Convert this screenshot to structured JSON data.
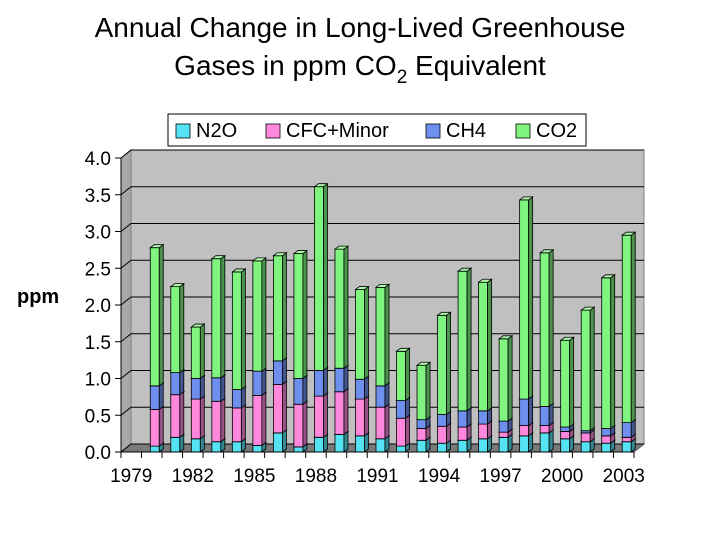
{
  "chart_data": {
    "type": "bar",
    "stacked": true,
    "style": "3d-stacked-column",
    "title_line1": "Annual Change in Long-Lived Greenhouse",
    "title_line2_prefix": "Gases in ppm CO",
    "title_line2_subscript": "2",
    "title_line2_suffix": " Equivalent",
    "ylabel": "ppm",
    "xlabel": "",
    "ylim": [
      0,
      4
    ],
    "yticks": [
      "0.0",
      "0.5",
      "1.0",
      "1.5",
      "2.0",
      "2.5",
      "3.0",
      "3.5",
      "4.0"
    ],
    "xtick_labels": [
      "1979",
      "1982",
      "1985",
      "1988",
      "1991",
      "1994",
      "1997",
      "2000",
      "2003"
    ],
    "grid": true,
    "legend_position": "top",
    "categories": [
      1979,
      1980,
      1981,
      1982,
      1983,
      1984,
      1985,
      1986,
      1987,
      1988,
      1989,
      1990,
      1991,
      1992,
      1993,
      1994,
      1995,
      1996,
      1997,
      1998,
      1999,
      2000,
      2001,
      2002,
      2003
    ],
    "series": [
      {
        "name": "N2O",
        "color": "#55e2f2",
        "values": [
          0,
          0.08,
          0.2,
          0.18,
          0.14,
          0.14,
          0.09,
          0.26,
          0.07,
          0.2,
          0.24,
          0.22,
          0.18,
          0.08,
          0.16,
          0.12,
          0.16,
          0.18,
          0.2,
          0.22,
          0.26,
          0.18,
          0.14,
          0.12,
          0.14
        ]
      },
      {
        "name": "CFC+Minor",
        "color": "#ff88dd",
        "values": [
          0,
          0.5,
          0.58,
          0.54,
          0.55,
          0.46,
          0.68,
          0.66,
          0.58,
          0.56,
          0.58,
          0.5,
          0.43,
          0.38,
          0.16,
          0.23,
          0.18,
          0.2,
          0.07,
          0.14,
          0.1,
          0.1,
          0.12,
          0.1,
          0.06
        ]
      },
      {
        "name": "CH4",
        "color": "#6f8fee",
        "values": [
          0,
          0.32,
          0.3,
          0.28,
          0.32,
          0.25,
          0.33,
          0.32,
          0.35,
          0.35,
          0.32,
          0.27,
          0.29,
          0.24,
          0.12,
          0.16,
          0.22,
          0.18,
          0.15,
          0.36,
          0.26,
          0.06,
          0.03,
          0.1,
          0.2
        ]
      },
      {
        "name": "CO2",
        "color": "#7ff57f",
        "values": [
          0,
          1.88,
          1.17,
          0.7,
          1.62,
          1.6,
          1.5,
          1.43,
          1.7,
          2.5,
          1.62,
          1.22,
          1.34,
          0.67,
          0.74,
          1.35,
          1.9,
          1.75,
          1.12,
          2.71,
          2.09,
          1.18,
          1.64,
          2.05,
          2.55
        ]
      }
    ]
  }
}
